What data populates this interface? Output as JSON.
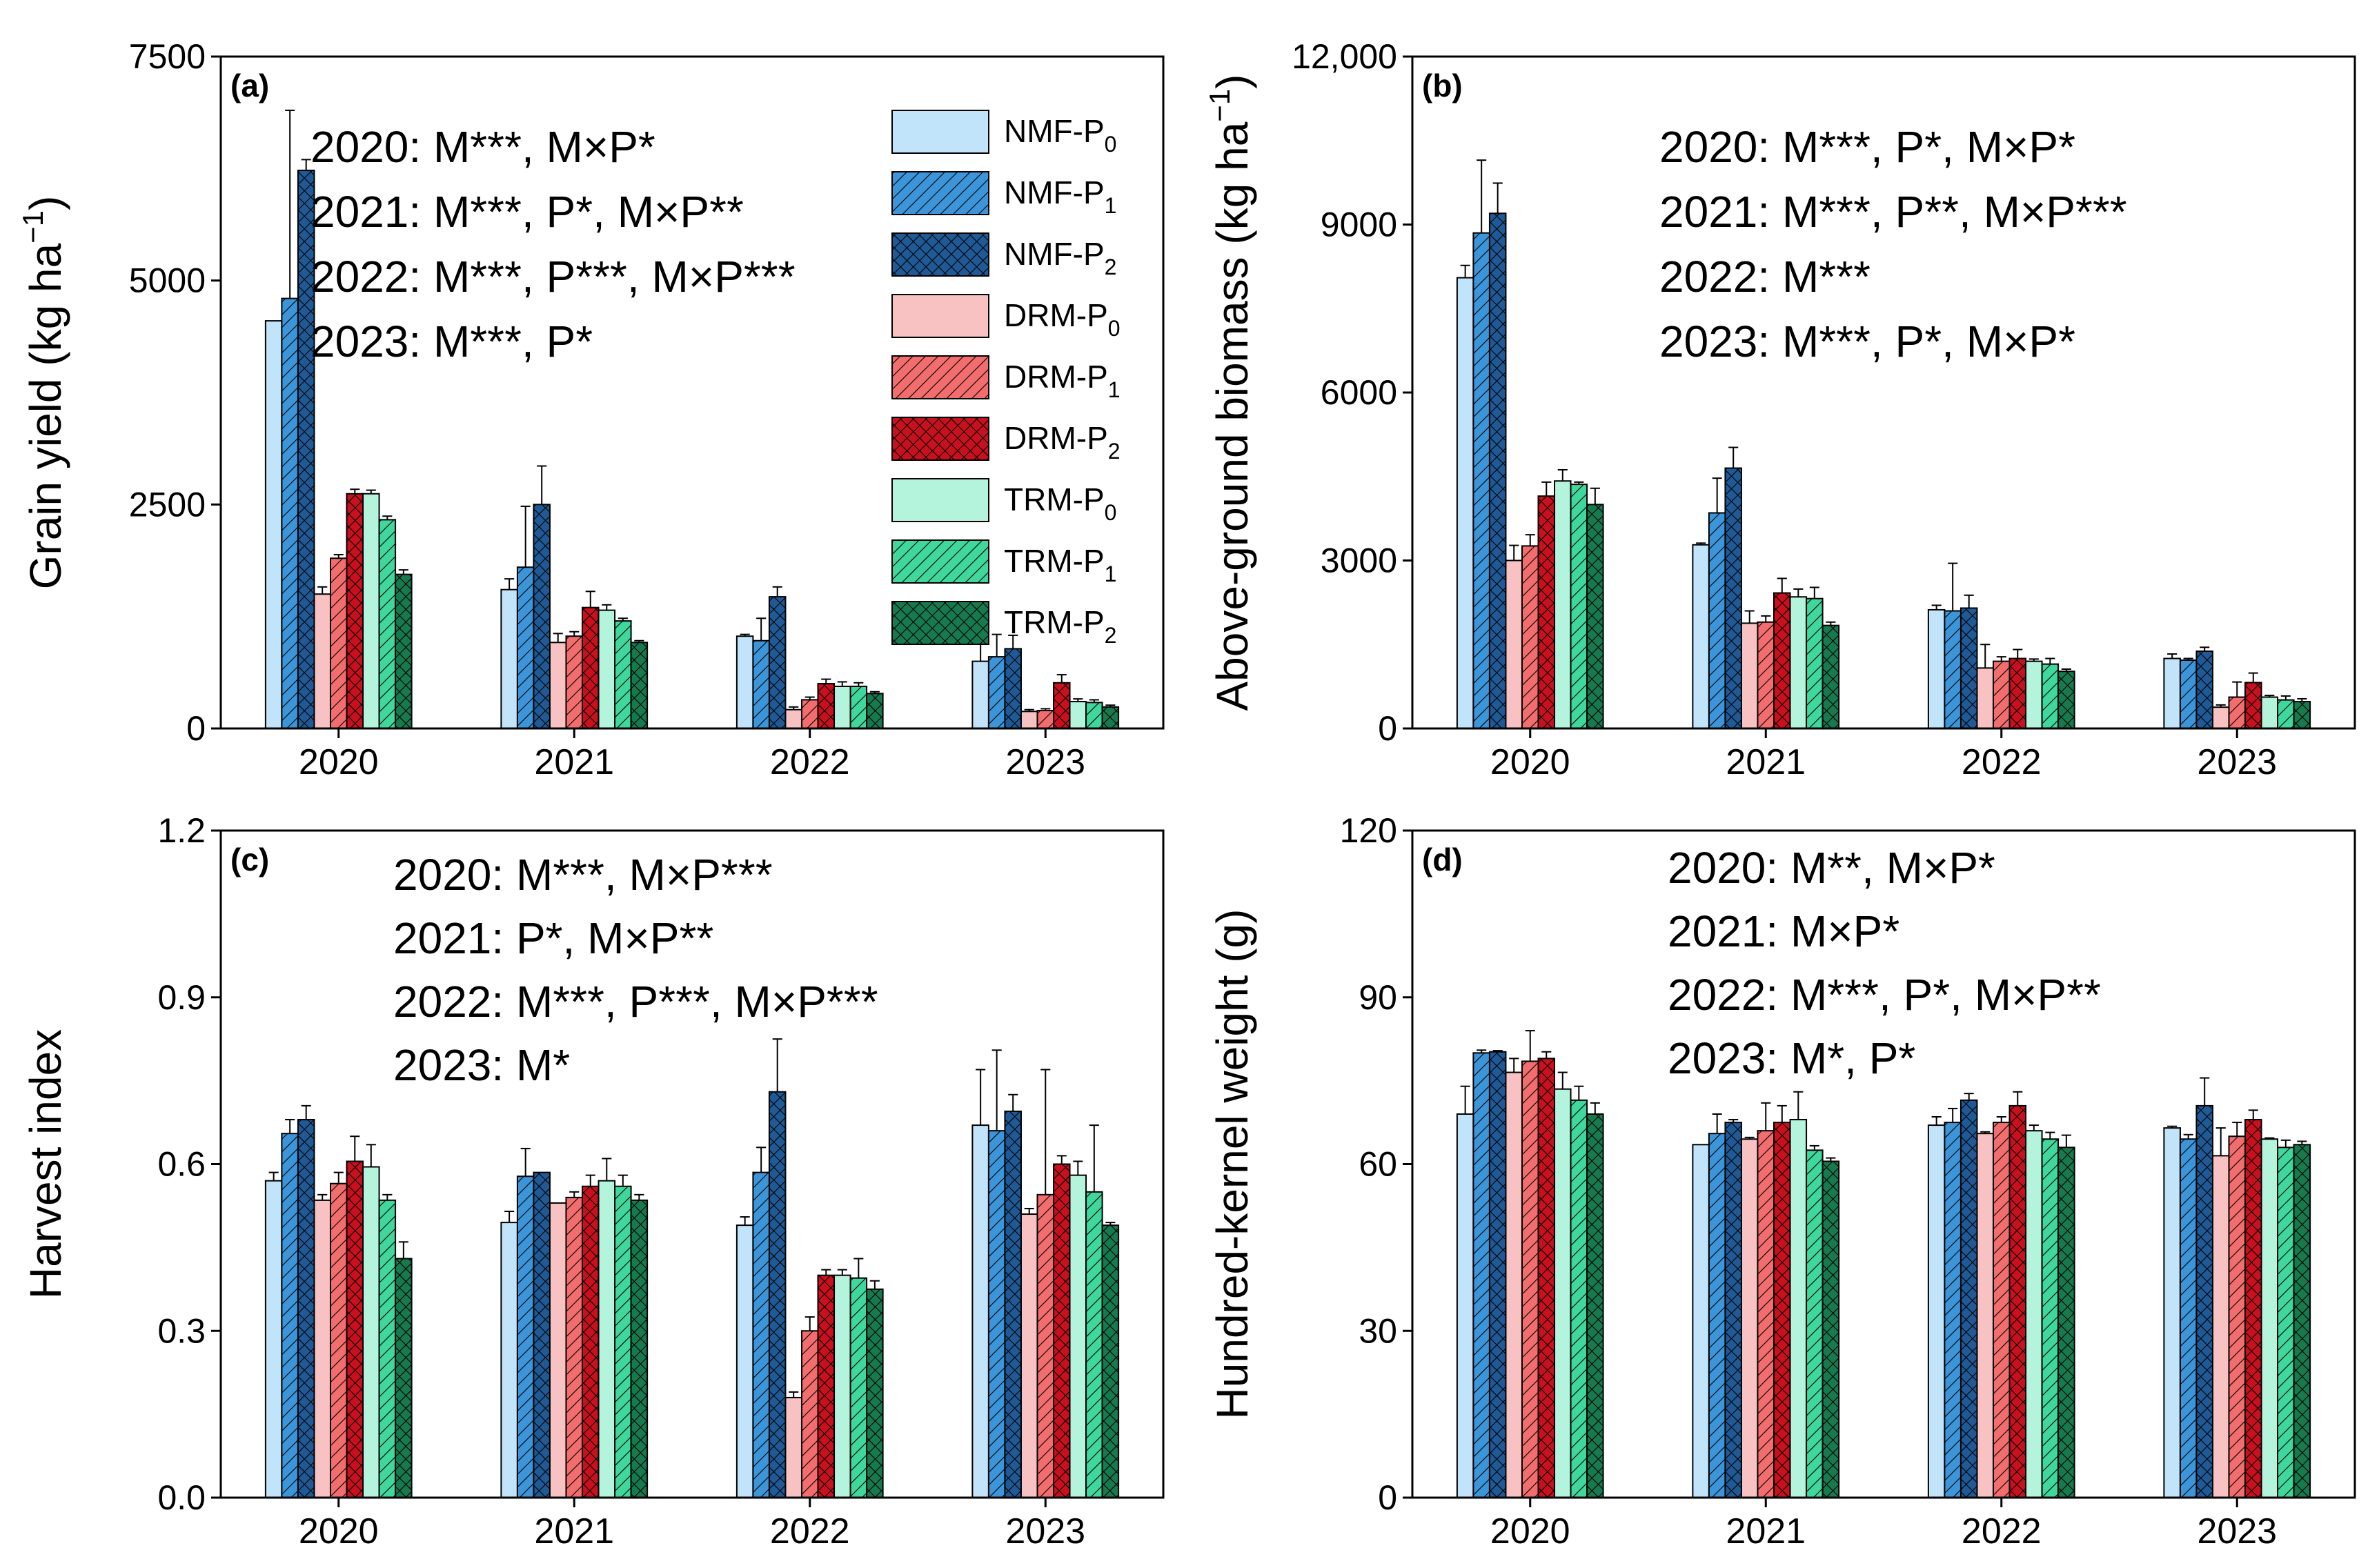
{
  "legend": [
    {
      "key": "NMF-P0",
      "base": "NMF-P",
      "sub": "0"
    },
    {
      "key": "NMF-P1",
      "base": "NMF-P",
      "sub": "1"
    },
    {
      "key": "NMF-P2",
      "base": "NMF-P",
      "sub": "2"
    },
    {
      "key": "DRM-P0",
      "base": "DRM-P",
      "sub": "0"
    },
    {
      "key": "DRM-P1",
      "base": "DRM-P",
      "sub": "1"
    },
    {
      "key": "DRM-P2",
      "base": "DRM-P",
      "sub": "2"
    },
    {
      "key": "TRM-P0",
      "base": "TRM-P",
      "sub": "0"
    },
    {
      "key": "TRM-P1",
      "base": "TRM-P",
      "sub": "1"
    },
    {
      "key": "TRM-P2",
      "base": "TRM-P",
      "sub": "2"
    }
  ],
  "colors": {
    "NMF-P0": "#c2e4fa",
    "NMF-P1": "#3d95d9",
    "NMF-P2": "#1f5a96",
    "DRM-P0": "#f8c2c2",
    "DRM-P1": "#f26d6d",
    "DRM-P2": "#c8101e",
    "TRM-P0": "#b4f4dd",
    "TRM-P1": "#3fd79c",
    "TRM-P2": "#177a4e"
  },
  "chart_data": [
    {
      "id": "a",
      "type": "bar",
      "panel_label": "(a)",
      "ylabel_main": "Grain yield (kg ha",
      "ylabel_sup": "−1",
      "ylabel_end": ")",
      "ylim": [
        0,
        7500
      ],
      "yticks": [
        "0",
        "2500",
        "5000",
        "7500"
      ],
      "ytick_values": [
        0,
        2500,
        5000,
        7500
      ],
      "categories": [
        "2020",
        "2021",
        "2022",
        "2023"
      ],
      "annotations": [
        "2020: M***, M×P*",
        "2021: M***, P*, M×P**",
        "2022: M***, P***, M×P***",
        "2023: M***, P*"
      ],
      "series": [
        {
          "name": "NMF-P0",
          "values": [
            4550,
            1550,
            1030,
            750
          ],
          "errors": [
            0,
            120,
            20,
            250
          ]
        },
        {
          "name": "NMF-P1",
          "values": [
            4800,
            1800,
            980,
            800
          ],
          "errors": [
            2100,
            680,
            250,
            250
          ]
        },
        {
          "name": "NMF-P2",
          "values": [
            6230,
            2500,
            1470,
            890
          ],
          "errors": [
            120,
            430,
            110,
            150
          ]
        },
        {
          "name": "DRM-P0",
          "values": [
            1500,
            960,
            210,
            190
          ],
          "errors": [
            80,
            100,
            30,
            20
          ]
        },
        {
          "name": "DRM-P1",
          "values": [
            1900,
            1030,
            320,
            200
          ],
          "errors": [
            40,
            50,
            30,
            20
          ]
        },
        {
          "name": "DRM-P2",
          "values": [
            2620,
            1350,
            500,
            510
          ],
          "errors": [
            50,
            180,
            50,
            90
          ]
        },
        {
          "name": "TRM-P0",
          "values": [
            2620,
            1320,
            470,
            300
          ],
          "errors": [
            40,
            60,
            50,
            30
          ]
        },
        {
          "name": "TRM-P1",
          "values": [
            2330,
            1200,
            470,
            290
          ],
          "errors": [
            40,
            30,
            40,
            30
          ]
        },
        {
          "name": "TRM-P2",
          "values": [
            1720,
            960,
            390,
            240
          ],
          "errors": [
            50,
            20,
            20,
            20
          ]
        }
      ]
    },
    {
      "id": "b",
      "type": "bar",
      "panel_label": "(b)",
      "ylabel_main": "Above-ground biomass (kg ha",
      "ylabel_sup": "−1",
      "ylabel_end": ")",
      "ylim": [
        0,
        12000
      ],
      "yticks": [
        "0",
        "3000",
        "6000",
        "9000",
        "12,000"
      ],
      "ytick_values": [
        0,
        3000,
        6000,
        9000,
        12000
      ],
      "categories": [
        "2020",
        "2021",
        "2022",
        "2023"
      ],
      "annotations": [
        "2020: M***, P*, M×P*",
        "2021: M***, P**, M×P***",
        "2022: M***",
        "2023: M***, P*, M×P*"
      ],
      "series": [
        {
          "name": "NMF-P0",
          "values": [
            8050,
            3280,
            2120,
            1250
          ],
          "errors": [
            220,
            30,
            80,
            80
          ]
        },
        {
          "name": "NMF-P1",
          "values": [
            8850,
            3850,
            2100,
            1220
          ],
          "errors": [
            1300,
            620,
            850,
            30
          ]
        },
        {
          "name": "NMF-P2",
          "values": [
            9200,
            4650,
            2150,
            1380
          ],
          "errors": [
            540,
            370,
            230,
            70
          ]
        },
        {
          "name": "DRM-P0",
          "values": [
            3000,
            1880,
            1080,
            380
          ],
          "errors": [
            270,
            220,
            420,
            40
          ]
        },
        {
          "name": "DRM-P1",
          "values": [
            3260,
            1900,
            1200,
            560
          ],
          "errors": [
            200,
            110,
            80,
            270
          ]
        },
        {
          "name": "DRM-P2",
          "values": [
            4150,
            2420,
            1250,
            820
          ],
          "errors": [
            250,
            260,
            160,
            170
          ]
        },
        {
          "name": "TRM-P0",
          "values": [
            4420,
            2350,
            1200,
            560
          ],
          "errors": [
            200,
            140,
            40,
            30
          ]
        },
        {
          "name": "TRM-P1",
          "values": [
            4360,
            2320,
            1150,
            510
          ],
          "errors": [
            40,
            200,
            100,
            70
          ]
        },
        {
          "name": "TRM-P2",
          "values": [
            4000,
            1840,
            1020,
            480
          ],
          "errors": [
            290,
            60,
            40,
            50
          ]
        }
      ]
    },
    {
      "id": "c",
      "type": "bar",
      "panel_label": "(c)",
      "ylabel_main": "Harvest index",
      "ylabel_sup": "",
      "ylabel_end": "",
      "ylim": [
        0,
        1.2
      ],
      "yticks": [
        "0.0",
        "0.3",
        "0.6",
        "0.9",
        "1.2"
      ],
      "ytick_values": [
        0,
        0.3,
        0.6,
        0.9,
        1.2
      ],
      "categories": [
        "2020",
        "2021",
        "2022",
        "2023"
      ],
      "annotations": [
        "2020: M***, M×P***",
        "2021: P*, M×P**",
        "2022: M***, P***, M×P***",
        "2023: M*"
      ],
      "series": [
        {
          "name": "NMF-P0",
          "values": [
            0.57,
            0.495,
            0.49,
            0.67
          ],
          "errors": [
            0.015,
            0.02,
            0.015,
            0.1
          ]
        },
        {
          "name": "NMF-P1",
          "values": [
            0.655,
            0.578,
            0.585,
            0.66
          ],
          "errors": [
            0.025,
            0.05,
            0.045,
            0.145
          ]
        },
        {
          "name": "NMF-P2",
          "values": [
            0.68,
            0.585,
            0.73,
            0.695
          ],
          "errors": [
            0.025,
            0.0,
            0.095,
            0.03
          ]
        },
        {
          "name": "DRM-P0",
          "values": [
            0.535,
            0.53,
            0.18,
            0.51
          ],
          "errors": [
            0.01,
            0.0,
            0.01,
            0.01
          ]
        },
        {
          "name": "DRM-P1",
          "values": [
            0.565,
            0.54,
            0.3,
            0.545
          ],
          "errors": [
            0.02,
            0.01,
            0.025,
            0.225
          ]
        },
        {
          "name": "DRM-P2",
          "values": [
            0.605,
            0.56,
            0.4,
            0.6
          ],
          "errors": [
            0.045,
            0.02,
            0.01,
            0.015
          ]
        },
        {
          "name": "TRM-P0",
          "values": [
            0.595,
            0.57,
            0.4,
            0.58
          ],
          "errors": [
            0.04,
            0.04,
            0.01,
            0.025
          ]
        },
        {
          "name": "TRM-P1",
          "values": [
            0.535,
            0.56,
            0.395,
            0.55
          ],
          "errors": [
            0.01,
            0.02,
            0.035,
            0.12
          ]
        },
        {
          "name": "TRM-P2",
          "values": [
            0.43,
            0.535,
            0.375,
            0.49
          ],
          "errors": [
            0.03,
            0.01,
            0.015,
            0.005
          ]
        }
      ]
    },
    {
      "id": "d",
      "type": "bar",
      "panel_label": "(d)",
      "ylabel_main": "Hundred-kernel weight (g)",
      "ylabel_sup": "",
      "ylabel_end": "",
      "ylim": [
        0,
        120
      ],
      "yticks": [
        "0",
        "30",
        "60",
        "90",
        "120"
      ],
      "ytick_values": [
        0,
        30,
        60,
        90,
        120
      ],
      "categories": [
        "2020",
        "2021",
        "2022",
        "2023"
      ],
      "annotations": [
        "2020: M**, M×P*",
        "2021: M×P*",
        "2022: M***, P*, M×P**",
        "2023: M*, P*"
      ],
      "series": [
        {
          "name": "NMF-P0",
          "values": [
            69,
            63.5,
            67,
            66.5
          ],
          "errors": [
            5,
            0,
            1.5,
            0.3
          ]
        },
        {
          "name": "NMF-P1",
          "values": [
            80,
            65.5,
            67.5,
            64.5
          ],
          "errors": [
            0.5,
            3.5,
            2.5,
            0.8
          ]
        },
        {
          "name": "NMF-P2",
          "values": [
            80.2,
            67.5,
            71.5,
            70.5
          ],
          "errors": [
            0.2,
            0.5,
            1.2,
            5
          ]
        },
        {
          "name": "DRM-P0",
          "values": [
            76.5,
            64.5,
            65.5,
            61.5
          ],
          "errors": [
            2.5,
            0.3,
            0.3,
            5
          ]
        },
        {
          "name": "DRM-P1",
          "values": [
            78.5,
            66,
            67.5,
            65
          ],
          "errors": [
            5.5,
            5,
            1,
            2.5
          ]
        },
        {
          "name": "DRM-P2",
          "values": [
            79,
            67.5,
            70.5,
            68
          ],
          "errors": [
            1.2,
            3,
            2.5,
            1.7
          ]
        },
        {
          "name": "TRM-P0",
          "values": [
            73.5,
            68,
            66,
            64.5
          ],
          "errors": [
            3,
            5,
            1,
            0.2
          ]
        },
        {
          "name": "TRM-P1",
          "values": [
            71.5,
            62.5,
            64.5,
            63
          ],
          "errors": [
            2.5,
            0.8,
            1.2,
            1.3
          ]
        },
        {
          "name": "TRM-P2",
          "values": [
            69,
            60.5,
            63,
            63.5
          ],
          "errors": [
            2,
            0.6,
            2.2,
            0.6
          ]
        }
      ]
    }
  ]
}
